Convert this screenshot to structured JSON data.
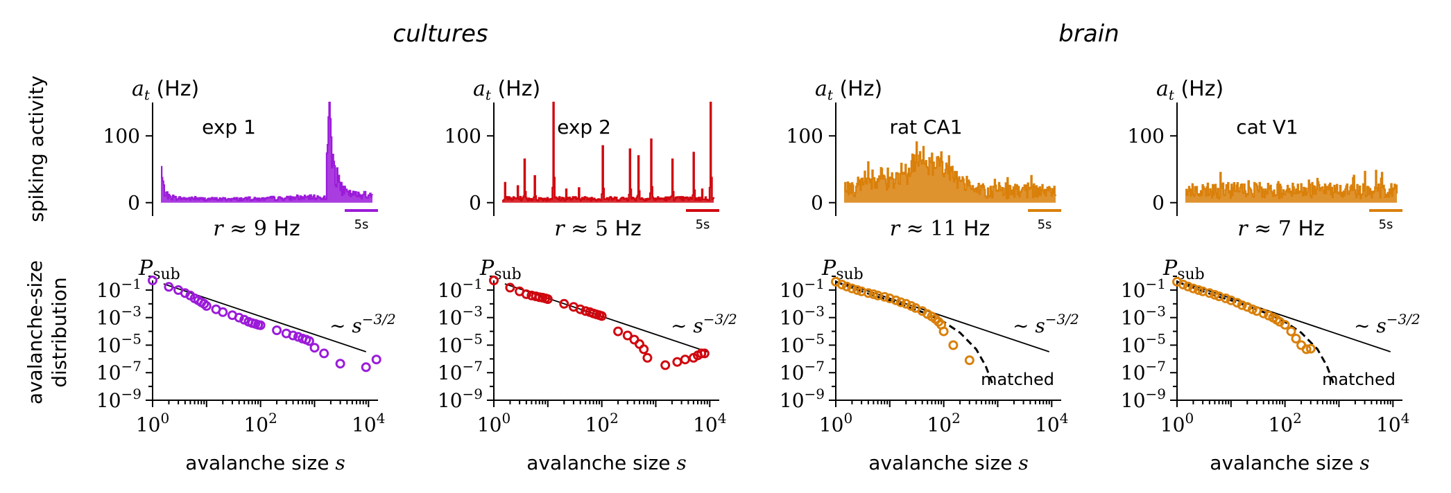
{
  "groups": [
    {
      "label": "cultures"
    },
    {
      "label": "brain"
    }
  ],
  "row_labels": {
    "activity": "spiking activity",
    "distribution_line1": "avalanche-size",
    "distribution_line2": "distribution"
  },
  "activity_axis": {
    "label_symbol": "a",
    "label_sub": "t",
    "label_unit": "(Hz)",
    "ticks": [
      "100",
      "0"
    ],
    "ylim": [
      -20,
      150
    ],
    "scale_bar_label": "5s"
  },
  "dist_axis": {
    "ylabel_symbol": "P",
    "ylabel_sub": "sub",
    "xlabel_text": "avalanche size",
    "xlabel_symbol": "s",
    "x_ticks": [
      {
        "base": "10",
        "exp": "0"
      },
      {
        "base": "10",
        "exp": "2"
      },
      {
        "base": "10",
        "exp": "4"
      }
    ],
    "y_ticks": [
      {
        "base": "10",
        "exp": "−1"
      },
      {
        "base": "10",
        "exp": "−3"
      },
      {
        "base": "10",
        "exp": "−5"
      },
      {
        "base": "10",
        "exp": "−7"
      },
      {
        "base": "10",
        "exp": "−9"
      }
    ],
    "power_law_prefix": "∼",
    "power_law_base": "s",
    "power_law_exp": "−3/2",
    "matched_label": "matched"
  },
  "chart_data": [
    {
      "type": "line",
      "panel": "exp 1",
      "group": "cultures",
      "color": "#9b1bd9",
      "title": "exp 1",
      "rate_prefix": "r ≈ ",
      "rate_value": "9",
      "rate_unit": "Hz",
      "ylabel": "a_t (Hz)",
      "ylim": [
        -20,
        150
      ],
      "envelope": [
        [
          0,
          55
        ],
        [
          1,
          40
        ],
        [
          3,
          22
        ],
        [
          6,
          12
        ],
        [
          12,
          8
        ],
        [
          25,
          7
        ],
        [
          50,
          6
        ],
        [
          80,
          6
        ],
        [
          100,
          6
        ],
        [
          120,
          6
        ],
        [
          140,
          7
        ],
        [
          160,
          8
        ],
        [
          180,
          9
        ],
        [
          194,
          8
        ],
        [
          195,
          100
        ],
        [
          196,
          150
        ],
        [
          197,
          150
        ],
        [
          199,
          120
        ],
        [
          201,
          80
        ],
        [
          205,
          45
        ],
        [
          210,
          25
        ],
        [
          220,
          15
        ],
        [
          235,
          12
        ],
        [
          250,
          11
        ]
      ]
    },
    {
      "type": "line",
      "panel": "exp 2",
      "group": "cultures",
      "color": "#d0070f",
      "title": "exp 2",
      "rate_prefix": "r ≈ ",
      "rate_value": "5",
      "rate_unit": "Hz",
      "ylabel": "a_t (Hz)",
      "ylim": [
        -20,
        150
      ],
      "baseline": 7,
      "peaks": [
        [
          3,
          30
        ],
        [
          18,
          25
        ],
        [
          26,
          65
        ],
        [
          38,
          40
        ],
        [
          60,
          150
        ],
        [
          75,
          20
        ],
        [
          90,
          22
        ],
        [
          118,
          85
        ],
        [
          150,
          80
        ],
        [
          160,
          70
        ],
        [
          175,
          95
        ],
        [
          200,
          65
        ],
        [
          225,
          75
        ],
        [
          235,
          20
        ],
        [
          245,
          150
        ]
      ]
    },
    {
      "type": "line",
      "panel": "rat CA1",
      "group": "brain",
      "color": "#d9800a",
      "title": "rat CA1",
      "rate_prefix": "r ≈ ",
      "rate_value": "11",
      "rate_unit": "Hz",
      "ylabel": "a_t (Hz)",
      "ylim": [
        -20,
        150
      ],
      "base_mean": 24,
      "base_amp": 16,
      "bumps": [
        [
          35,
          20,
          20
        ],
        [
          90,
          35,
          40
        ],
        [
          115,
          30,
          15
        ]
      ]
    },
    {
      "type": "line",
      "panel": "cat V1",
      "group": "brain",
      "color": "#d9800a",
      "title": "cat V1",
      "rate_prefix": "r ≈ ",
      "rate_value": "7",
      "rate_unit": "Hz",
      "ylabel": "a_t (Hz)",
      "ylim": [
        -20,
        150
      ],
      "base_mean": 24,
      "base_amp": 20,
      "bumps": []
    },
    {
      "type": "scatter",
      "panel": "exp 1 avalanche-size distribution",
      "group": "cultures",
      "color": "#9b1bd9",
      "xscale": "log",
      "yscale": "log",
      "xlim": [
        1,
        15000
      ],
      "ylim": [
        1e-09,
        0.5
      ],
      "xlabel": "avalanche size s",
      "ylabel": "P_sub",
      "points": [
        [
          1,
          0.5
        ],
        [
          2,
          0.17
        ],
        [
          3,
          0.1
        ],
        [
          4,
          0.06
        ],
        [
          5,
          0.04
        ],
        [
          6,
          0.025
        ],
        [
          7,
          0.018
        ],
        [
          8,
          0.013
        ],
        [
          9,
          0.01
        ],
        [
          10,
          0.007
        ],
        [
          15,
          0.004
        ],
        [
          20,
          0.0025
        ],
        [
          30,
          0.0015
        ],
        [
          40,
          0.001
        ],
        [
          50,
          0.0007
        ],
        [
          60,
          0.0005
        ],
        [
          70,
          0.0004
        ],
        [
          80,
          0.00035
        ],
        [
          90,
          0.0003
        ],
        [
          100,
          0.00028
        ],
        [
          200,
          0.00012
        ],
        [
          300,
          7e-05
        ],
        [
          400,
          5e-05
        ],
        [
          500,
          4e-05
        ],
        [
          600,
          3e-05
        ],
        [
          700,
          2.5e-05
        ],
        [
          800,
          2e-05
        ],
        [
          1000,
          6.5e-06
        ],
        [
          1500,
          2.5e-06
        ],
        [
          3000,
          4.5e-07
        ],
        [
          9000,
          2.5e-07
        ],
        [
          14000,
          9e-07
        ]
      ],
      "power_law": {
        "label": "∼ s^−3/2",
        "x": [
          1.6,
          9000
        ],
        "y": [
          0.28,
          3.3e-06
        ]
      }
    },
    {
      "type": "scatter",
      "panel": "exp 2 avalanche-size distribution",
      "group": "cultures",
      "color": "#d0070f",
      "xscale": "log",
      "yscale": "log",
      "xlim": [
        1,
        15000
      ],
      "ylim": [
        1e-09,
        0.5
      ],
      "xlabel": "avalanche size s",
      "ylabel": "P_sub",
      "points": [
        [
          1,
          0.5
        ],
        [
          2,
          0.15
        ],
        [
          3,
          0.08
        ],
        [
          4,
          0.05
        ],
        [
          5,
          0.04
        ],
        [
          6,
          0.035
        ],
        [
          7,
          0.03
        ],
        [
          8,
          0.028
        ],
        [
          9,
          0.025
        ],
        [
          10,
          0.022
        ],
        [
          20,
          0.01
        ],
        [
          30,
          0.006
        ],
        [
          40,
          0.004
        ],
        [
          50,
          0.003
        ],
        [
          60,
          0.0025
        ],
        [
          70,
          0.002
        ],
        [
          80,
          0.0017
        ],
        [
          90,
          0.0015
        ],
        [
          100,
          0.0013
        ],
        [
          200,
          0.0001
        ],
        [
          300,
          5e-05
        ],
        [
          400,
          2.5e-05
        ],
        [
          500,
          1.2e-05
        ],
        [
          600,
          5e-06
        ],
        [
          700,
          1.2e-06
        ],
        [
          1500,
          3.5e-07
        ],
        [
          2500,
          6e-07
        ],
        [
          3500,
          9e-07
        ],
        [
          5000,
          1.2e-06
        ],
        [
          6000,
          1.8e-06
        ],
        [
          7000,
          2.5e-06
        ],
        [
          8000,
          2.5e-06
        ]
      ],
      "power_law": {
        "label": "∼ s^−3/2",
        "x": [
          1.6,
          9000
        ],
        "y": [
          0.28,
          3.3e-06
        ]
      }
    },
    {
      "type": "scatter",
      "panel": "rat CA1 avalanche-size distribution",
      "group": "brain",
      "color": "#d9800a",
      "xscale": "log",
      "yscale": "log",
      "xlim": [
        1,
        15000
      ],
      "ylim": [
        1e-09,
        0.5
      ],
      "xlabel": "avalanche size s",
      "ylabel": "P_sub",
      "points": [
        [
          1,
          0.4
        ],
        [
          1.3,
          0.25
        ],
        [
          1.6,
          0.18
        ],
        [
          2,
          0.13
        ],
        [
          2.5,
          0.1
        ],
        [
          3,
          0.08
        ],
        [
          4,
          0.06
        ],
        [
          5,
          0.05
        ],
        [
          6,
          0.04
        ],
        [
          8,
          0.032
        ],
        [
          10,
          0.025
        ],
        [
          13,
          0.018
        ],
        [
          16,
          0.013
        ],
        [
          20,
          0.01
        ],
        [
          25,
          0.007
        ],
        [
          30,
          0.005
        ],
        [
          40,
          0.003
        ],
        [
          50,
          0.0018
        ],
        [
          60,
          0.0012
        ],
        [
          70,
          0.0008
        ],
        [
          80,
          0.0005
        ],
        [
          90,
          0.0003
        ],
        [
          100,
          0.0001
        ],
        [
          150,
          1e-05
        ],
        [
          300,
          8e-07
        ]
      ],
      "power_law": {
        "label": "∼ s^−3/2",
        "x": [
          1.6,
          9000
        ],
        "y": [
          0.28,
          3.3e-06
        ]
      },
      "matched": {
        "label": "matched",
        "x": [
          1,
          2,
          5,
          10,
          20,
          50,
          100,
          200,
          400,
          600,
          800
        ],
        "y": [
          0.4,
          0.15,
          0.04,
          0.018,
          0.007,
          0.0018,
          0.0005,
          8e-05,
          5e-06,
          3e-07,
          1.5e-08
        ]
      }
    },
    {
      "type": "scatter",
      "panel": "cat V1 avalanche-size distribution",
      "group": "brain",
      "color": "#d9800a",
      "xscale": "log",
      "yscale": "log",
      "xlim": [
        1,
        15000
      ],
      "ylim": [
        1e-09,
        0.5
      ],
      "xlabel": "avalanche size s",
      "ylabel": "P_sub",
      "points": [
        [
          1,
          0.4
        ],
        [
          1.3,
          0.25
        ],
        [
          1.6,
          0.18
        ],
        [
          2,
          0.13
        ],
        [
          2.5,
          0.1
        ],
        [
          3,
          0.08
        ],
        [
          4,
          0.06
        ],
        [
          5,
          0.045
        ],
        [
          6,
          0.035
        ],
        [
          8,
          0.025
        ],
        [
          10,
          0.018
        ],
        [
          13,
          0.012
        ],
        [
          16,
          0.008
        ],
        [
          20,
          0.006
        ],
        [
          25,
          0.004
        ],
        [
          30,
          0.003
        ],
        [
          40,
          0.002
        ],
        [
          50,
          0.0014
        ],
        [
          60,
          0.001
        ],
        [
          70,
          0.0007
        ],
        [
          80,
          0.0005
        ],
        [
          100,
          0.0003
        ],
        [
          130,
          0.0001
        ],
        [
          160,
          3e-05
        ],
        [
          200,
          1e-05
        ],
        [
          250,
          5e-06
        ],
        [
          300,
          5.5e-06
        ]
      ],
      "power_law": {
        "label": "∼ s^−3/2",
        "x": [
          1.6,
          9000
        ],
        "y": [
          0.28,
          3.3e-06
        ]
      },
      "matched": {
        "label": "matched",
        "x": [
          1,
          2,
          5,
          10,
          20,
          50,
          100,
          200,
          400,
          600,
          800
        ],
        "y": [
          0.4,
          0.15,
          0.04,
          0.018,
          0.007,
          0.0018,
          0.0005,
          8e-05,
          5e-06,
          3e-07,
          1.5e-08
        ]
      }
    }
  ]
}
